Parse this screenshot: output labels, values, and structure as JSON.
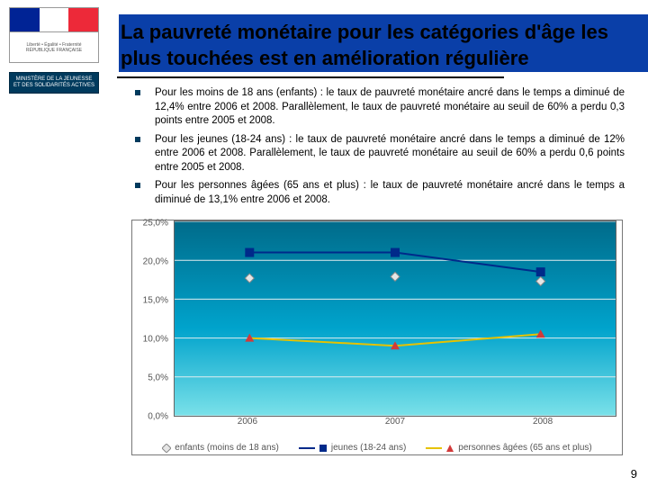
{
  "logo": {
    "motto": "Liberté • Égalité • Fraternité",
    "republic": "RÉPUBLIQUE FRANÇAISE",
    "ministry": "MINISTÈRE DE LA JEUNESSE ET DES SOLIDARITÉS ACTIVES"
  },
  "title": "La pauvreté monétaire pour les catégories d'âge les plus touchées est en amélioration régulière",
  "bullets": [
    "Pour les moins de 18 ans (enfants) : le taux de pauvreté monétaire ancré dans le temps a diminué de 12,4% entre 2006 et 2008. Parallèlement, le taux de pauvreté monétaire au seuil de 60% a perdu 0,3 points entre 2005 et 2008.",
    "Pour les jeunes (18-24 ans) : le taux de pauvreté monétaire ancré dans le temps a diminué de 12% entre 2006 et 2008. Parallèlement, le taux de pauvreté monétaire au seuil de 60% a perdu 0,6 points entre 2005 et 2008.",
    "Pour les personnes âgées (65 ans et plus) : le taux de pauvreté monétaire ancré dans le temps a diminué de 13,1% entre 2006 et 2008."
  ],
  "chart": {
    "type": "line",
    "x_categories": [
      "2006",
      "2007",
      "2008"
    ],
    "y_ticks": [
      0,
      5,
      10,
      15,
      20,
      25
    ],
    "y_tick_labels": [
      "0,0%",
      "5,0%",
      "10,0%",
      "15,0%",
      "20,0%",
      "25,0%"
    ],
    "ylim": [
      0,
      25
    ],
    "background_gradient": [
      "#006b8a",
      "#00a3cc",
      "#7ae1e9"
    ],
    "grid_color": "#dfeef0",
    "label_fontsize": 10,
    "label_color": "#555555",
    "series": [
      {
        "name": "enfants (moins de 18 ans)",
        "marker": "diamond",
        "color": "#e6e6e6",
        "edge": "#888888",
        "values": [
          17.7,
          17.9,
          17.3
        ]
      },
      {
        "name": "jeunes (18-24 ans)",
        "marker": "square",
        "color": "#002a8a",
        "edge": "#002a8a",
        "values": [
          21.0,
          21.0,
          18.5
        ]
      },
      {
        "name": "personnes âgées (65 ans et plus)",
        "marker": "triangle",
        "color": "#d23a3a",
        "edge": "#d23a3a",
        "values": [
          10.0,
          9.0,
          10.5
        ]
      }
    ],
    "legend": [
      "enfants (moins de 18 ans)",
      "jeunes (18-24 ans)",
      "personnes âgées (65 ans et plus)"
    ]
  },
  "page_number": "9"
}
